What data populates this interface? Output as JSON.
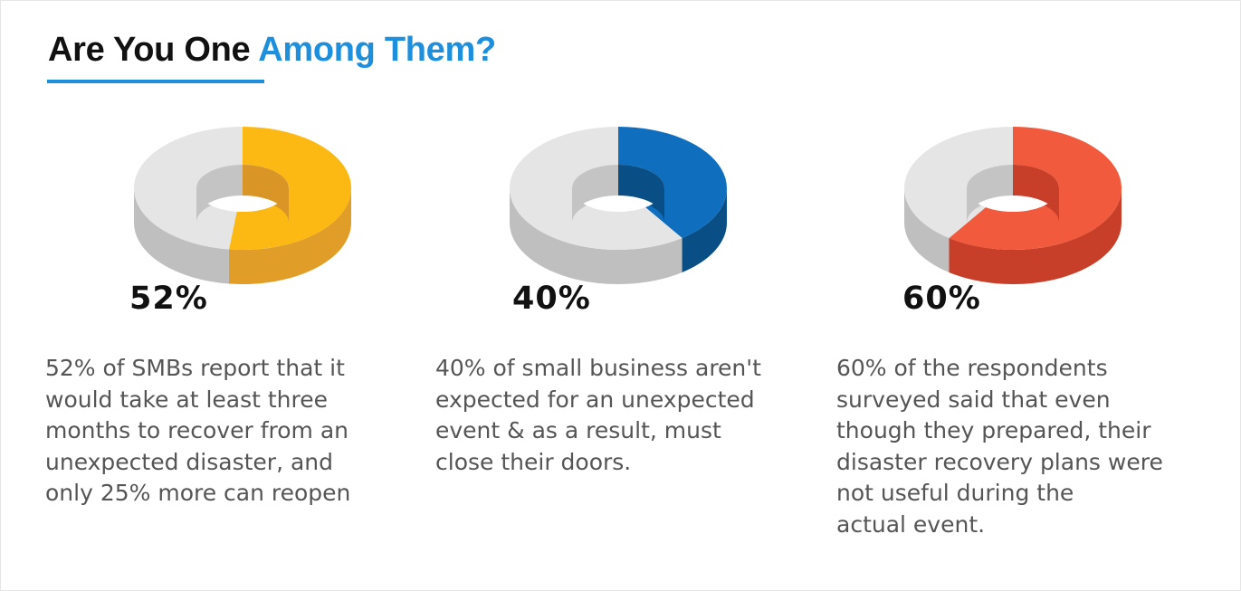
{
  "header": {
    "title_part1": "Are You One ",
    "title_part2": "Among Them?",
    "accent_color": "#1e8fdd"
  },
  "chart_data": [
    {
      "type": "pie",
      "variant": "3d-donut",
      "value": 52,
      "data_label": "52%",
      "description": "52% of SMBs report that it\nwould take at least three\nmonths to recover from an\nunexpected disaster, and\nonly 25% more can reopen",
      "colors": {
        "top": "#fdb913",
        "side": "#e09e28",
        "hole": "#d99525"
      }
    },
    {
      "type": "pie",
      "variant": "3d-donut",
      "value": 40,
      "data_label": "40%",
      "description": "40% of small business aren't\nexpected for an unexpected\nevent & as a result, must\nclose their doors.",
      "colors": {
        "top": "#0f6ebd",
        "side": "#0a4e86",
        "hole": "#0a4e86"
      }
    },
    {
      "type": "pie",
      "variant": "3d-donut",
      "value": 60,
      "data_label": "60%",
      "description": "60% of the respondents\nsurveyed said that even\nthough they prepared, their\ndisaster recovery plans were\nnot useful during the\nactual event.",
      "colors": {
        "top": "#f15a3c",
        "side": "#c83f29",
        "hole": "#c83f29"
      }
    }
  ],
  "neutral_colors": {
    "top": "#e5e5e5",
    "side": "#bfbfbf",
    "hole": "#c4c4c4"
  }
}
